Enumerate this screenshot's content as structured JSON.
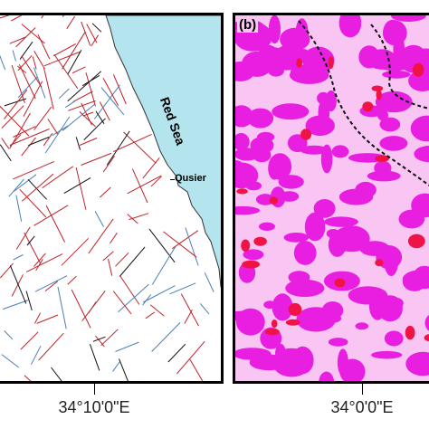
{
  "panel_a": {
    "sea_label": "Red Sea",
    "town_label": "Qusier",
    "colors": {
      "sea": "#b4e4ee",
      "land": "#ffffff",
      "lineament_red": "#c0222a",
      "lineament_blue": "#4a7fb5",
      "lineament_black": "#111111"
    },
    "x_axis_label": "34°10'0\"E"
  },
  "panel_b": {
    "tag": "(b)",
    "colors": {
      "background": "#f9c6f3",
      "high": "#e81fe0",
      "very_high": "#f01446",
      "boundary": "#111111"
    },
    "x_axis_label": "34°0'0\"E"
  }
}
